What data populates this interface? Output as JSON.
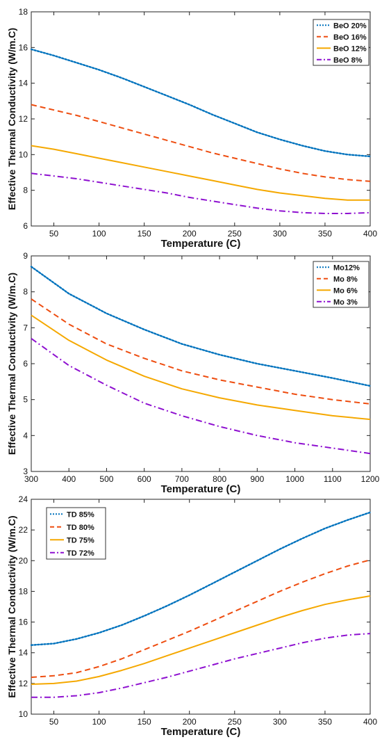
{
  "colors": {
    "blue": "#0072BD",
    "orange": "#EE4D10",
    "yellow": "#F5A800",
    "purple": "#8E10D0"
  },
  "chart_data": [
    {
      "type": "line",
      "xlabel": "Temperature (C)",
      "ylabel": "Effective Thermal Conductivity (W/m.C)",
      "xlim": [
        25,
        400
      ],
      "ylim": [
        6,
        18
      ],
      "xticks": [
        "50",
        "100",
        "150",
        "200",
        "250",
        "300",
        "350",
        "400"
      ],
      "yticks": [
        "6",
        "8",
        "10",
        "12",
        "14",
        "16",
        "18"
      ],
      "grid": false,
      "legend_position": "top-right",
      "x": [
        25,
        50,
        75,
        100,
        125,
        150,
        175,
        200,
        225,
        250,
        275,
        300,
        325,
        350,
        375,
        400
      ],
      "series": [
        {
          "name": "BeO 20%",
          "style": "dotted",
          "color": "blue",
          "values": [
            15.9,
            15.55,
            15.15,
            14.75,
            14.3,
            13.8,
            13.3,
            12.8,
            12.25,
            11.75,
            11.25,
            10.85,
            10.5,
            10.2,
            10.0,
            9.9
          ]
        },
        {
          "name": "BeO 16%",
          "style": "dashed",
          "color": "orange",
          "values": [
            12.8,
            12.5,
            12.2,
            11.85,
            11.5,
            11.15,
            10.8,
            10.45,
            10.1,
            9.8,
            9.5,
            9.2,
            8.95,
            8.75,
            8.6,
            8.5
          ]
        },
        {
          "name": "BeO 12%",
          "style": "solid",
          "color": "yellow",
          "values": [
            10.5,
            10.3,
            10.05,
            9.8,
            9.55,
            9.3,
            9.05,
            8.8,
            8.55,
            8.3,
            8.05,
            7.85,
            7.7,
            7.55,
            7.45,
            7.45
          ]
        },
        {
          "name": "BeO 8%",
          "style": "dashdot",
          "color": "purple",
          "values": [
            8.95,
            8.8,
            8.65,
            8.45,
            8.25,
            8.05,
            7.85,
            7.6,
            7.4,
            7.2,
            7.0,
            6.85,
            6.75,
            6.7,
            6.7,
            6.75
          ]
        }
      ]
    },
    {
      "type": "line",
      "xlabel": "Temperature (C)",
      "ylabel": "Effective Thermal Conductivity (W/m.C)",
      "xlim": [
        300,
        1200
      ],
      "ylim": [
        3,
        9
      ],
      "xticks": [
        "300",
        "400",
        "500",
        "600",
        "700",
        "800",
        "900",
        "1000",
        "1100",
        "1200"
      ],
      "yticks": [
        "3",
        "4",
        "5",
        "6",
        "7",
        "8",
        "9"
      ],
      "grid": false,
      "legend_position": "top-right",
      "x": [
        300,
        400,
        500,
        600,
        700,
        800,
        900,
        1000,
        1100,
        1200
      ],
      "series": [
        {
          "name": "Mo12%",
          "style": "dotted",
          "color": "blue",
          "values": [
            8.7,
            7.95,
            7.4,
            6.95,
            6.55,
            6.25,
            6.0,
            5.8,
            5.6,
            5.38
          ]
        },
        {
          "name": "Mo 8%",
          "style": "dashed",
          "color": "orange",
          "values": [
            7.8,
            7.1,
            6.55,
            6.15,
            5.8,
            5.55,
            5.35,
            5.15,
            5.0,
            4.88
          ]
        },
        {
          "name": "Mo 6%",
          "style": "solid",
          "color": "yellow",
          "values": [
            7.35,
            6.65,
            6.1,
            5.65,
            5.3,
            5.05,
            4.85,
            4.7,
            4.55,
            4.45
          ]
        },
        {
          "name": "Mo 3%",
          "style": "dashdot",
          "color": "purple",
          "values": [
            6.7,
            5.95,
            5.4,
            4.9,
            4.55,
            4.25,
            4.0,
            3.8,
            3.65,
            3.5
          ]
        }
      ]
    },
    {
      "type": "line",
      "xlabel": "Temperature (C)",
      "ylabel": "Effective Thermal Conductivity (W/m.C)",
      "xlim": [
        25,
        400
      ],
      "ylim": [
        10,
        24
      ],
      "xticks": [
        "50",
        "100",
        "150",
        "200",
        "250",
        "300",
        "350",
        "400"
      ],
      "yticks": [
        "10",
        "12",
        "14",
        "16",
        "18",
        "20",
        "22",
        "24"
      ],
      "grid": false,
      "legend_position": "top-left",
      "x": [
        25,
        50,
        75,
        100,
        125,
        150,
        175,
        200,
        225,
        250,
        275,
        300,
        325,
        350,
        375,
        400
      ],
      "series": [
        {
          "name": "TD 85%",
          "style": "dotted",
          "color": "blue",
          "values": [
            14.5,
            14.6,
            14.9,
            15.3,
            15.8,
            16.4,
            17.05,
            17.75,
            18.5,
            19.25,
            20.0,
            20.75,
            21.45,
            22.1,
            22.65,
            23.15
          ]
        },
        {
          "name": "TD 80%",
          "style": "dashed",
          "color": "orange",
          "values": [
            12.4,
            12.5,
            12.7,
            13.1,
            13.6,
            14.2,
            14.8,
            15.4,
            16.05,
            16.7,
            17.35,
            18.0,
            18.6,
            19.15,
            19.65,
            20.05
          ]
        },
        {
          "name": "TD 75%",
          "style": "solid",
          "color": "yellow",
          "values": [
            11.95,
            12.0,
            12.15,
            12.45,
            12.85,
            13.3,
            13.8,
            14.3,
            14.8,
            15.3,
            15.8,
            16.3,
            16.75,
            17.15,
            17.45,
            17.7
          ]
        },
        {
          "name": "TD 72%",
          "style": "dashdot",
          "color": "purple",
          "values": [
            11.1,
            11.1,
            11.2,
            11.4,
            11.7,
            12.05,
            12.4,
            12.8,
            13.2,
            13.6,
            13.95,
            14.3,
            14.65,
            14.95,
            15.15,
            15.25
          ]
        }
      ]
    }
  ]
}
